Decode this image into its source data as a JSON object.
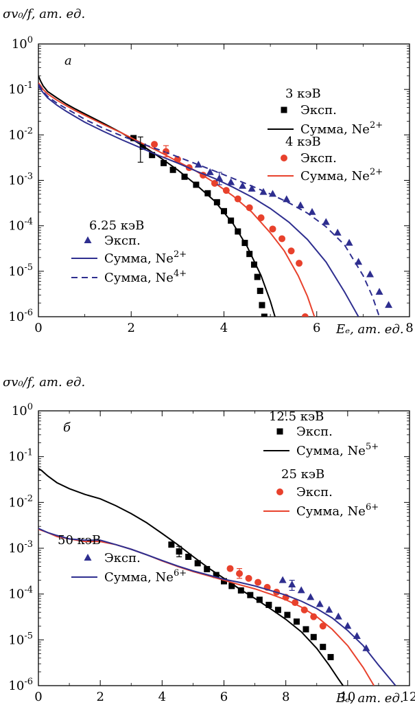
{
  "chart_data": [
    {
      "type": "line",
      "panel_label": "а",
      "ylabel": "σv₀/f, ат. ед.",
      "xlabel": "Eₑ, ат. ед.",
      "xlim": [
        0,
        8
      ],
      "ylim": [
        1e-06,
        1
      ],
      "yscale": "log",
      "xticks": [
        "0",
        "2",
        "4",
        "6",
        "8"
      ],
      "yticks": [
        "10^0",
        "10^-1",
        "10^-2",
        "10^-3",
        "10^-4",
        "10^-5",
        "10^-6"
      ],
      "legend": [
        {
          "title": "3 кэВ",
          "items": [
            {
              "marker": "square",
              "color": "#000000",
              "label": "Эксп."
            },
            {
              "line": "solid",
              "color": "#000000",
              "label": "Сумма, Ne",
              "sup": "2+"
            }
          ]
        },
        {
          "title": "4 кэВ",
          "items": [
            {
              "marker": "circle",
              "color": "#e8412c",
              "label": "Эксп."
            },
            {
              "line": "solid",
              "color": "#e8412c",
              "label": "Сумма, Ne",
              "sup": "2+"
            }
          ]
        },
        {
          "title": "6.25 кэВ",
          "items": [
            {
              "marker": "triangle",
              "color": "#2e2e8f",
              "label": "Эксп."
            },
            {
              "line": "solid",
              "color": "#2e2e8f",
              "label": "Сумма, Ne",
              "sup": "2+"
            },
            {
              "line": "dashed",
              "color": "#2e2e8f",
              "label": "Сумма, Ne",
              "sup": "4+"
            }
          ]
        }
      ],
      "series": [
        {
          "kind": "line",
          "style": "solid",
          "color": "#000000",
          "x": [
            0.0,
            0.05,
            0.1,
            0.2,
            0.4,
            0.6,
            0.8,
            1.0,
            1.4,
            1.8,
            2.2,
            2.6,
            3.0,
            3.4,
            3.8,
            4.2,
            4.5,
            4.8,
            5.0,
            5.1
          ],
          "y": [
            0.2,
            0.15,
            0.12,
            0.09,
            0.065,
            0.048,
            0.037,
            0.029,
            0.018,
            0.011,
            0.0062,
            0.0033,
            0.0017,
            0.0008,
            0.00035,
            0.00011,
            3.5e-05,
            8e-06,
            2.2e-06,
            1e-06
          ]
        },
        {
          "kind": "points",
          "marker": "square",
          "color": "#000000",
          "x": [
            2.05,
            2.25,
            2.45,
            2.7,
            2.9,
            3.15,
            3.4,
            3.65,
            3.85,
            4.0,
            4.15,
            4.3,
            4.45,
            4.55,
            4.65,
            4.72,
            4.78,
            4.82,
            4.87
          ],
          "y": [
            0.0085,
            0.0055,
            0.0036,
            0.0024,
            0.0017,
            0.0012,
            0.0008,
            0.00052,
            0.00033,
            0.00021,
            0.00013,
            7.5e-05,
            4.2e-05,
            2.4e-05,
            1.4e-05,
            7.5e-06,
            3.7e-06,
            1.8e-06,
            1e-06
          ]
        },
        {
          "kind": "line",
          "style": "solid",
          "color": "#e8412c",
          "x": [
            0.0,
            0.05,
            0.1,
            0.2,
            0.4,
            0.6,
            0.8,
            1.0,
            1.4,
            1.8,
            2.2,
            2.6,
            3.0,
            3.4,
            3.8,
            4.2,
            4.6,
            5.0,
            5.3,
            5.6,
            5.8,
            5.95
          ],
          "y": [
            0.14,
            0.12,
            0.1,
            0.08,
            0.058,
            0.044,
            0.034,
            0.027,
            0.017,
            0.011,
            0.0068,
            0.0043,
            0.0026,
            0.0016,
            0.00088,
            0.00045,
            0.0002,
            7e-05,
            2.8e-05,
            8e-06,
            2.8e-06,
            1e-06
          ]
        },
        {
          "kind": "points",
          "marker": "circle",
          "color": "#e8412c",
          "x": [
            2.5,
            2.75,
            3.0,
            3.25,
            3.55,
            3.8,
            4.05,
            4.3,
            4.55,
            4.8,
            5.05,
            5.25,
            5.45,
            5.62,
            5.75
          ],
          "y": [
            0.0062,
            0.0043,
            0.0029,
            0.0019,
            0.0013,
            0.00086,
            0.0006,
            0.00039,
            0.00025,
            0.00015,
            8.5e-05,
            5.2e-05,
            2.8e-05,
            1.5e-05,
            1e-06
          ]
        },
        {
          "kind": "line",
          "style": "solid",
          "color": "#2e2e8f",
          "x": [
            0.0,
            0.05,
            0.1,
            0.2,
            0.4,
            0.6,
            0.8,
            1.0,
            1.4,
            1.8,
            2.2,
            2.6,
            3.0,
            3.4,
            3.8,
            4.2,
            4.6,
            5.0,
            5.4,
            5.8,
            6.2,
            6.6,
            6.9
          ],
          "y": [
            0.12,
            0.1,
            0.085,
            0.065,
            0.045,
            0.033,
            0.025,
            0.019,
            0.012,
            0.0078,
            0.0052,
            0.0035,
            0.0024,
            0.0016,
            0.0011,
            0.0007,
            0.00043,
            0.00024,
            0.00012,
            5e-05,
            1.6e-05,
            3.5e-06,
            1e-06
          ]
        },
        {
          "kind": "line",
          "style": "dashed",
          "color": "#2e2e8f",
          "x": [
            0.0,
            0.05,
            0.1,
            0.2,
            0.4,
            0.6,
            0.8,
            1.0,
            1.4,
            1.8,
            2.2,
            2.6,
            3.0,
            3.4,
            3.8,
            4.2,
            4.6,
            5.0,
            5.4,
            5.8,
            6.2,
            6.6,
            7.0,
            7.2,
            7.35
          ],
          "y": [
            0.13,
            0.11,
            0.09,
            0.07,
            0.05,
            0.038,
            0.029,
            0.022,
            0.014,
            0.0095,
            0.0066,
            0.0047,
            0.0033,
            0.0023,
            0.0016,
            0.0011,
            0.00075,
            0.0005,
            0.00032,
            0.00019,
            9.5e-05,
            3.8e-05,
            8e-06,
            2.8e-06,
            1e-06
          ]
        },
        {
          "kind": "points",
          "marker": "triangle",
          "color": "#2e2e8f",
          "x": [
            3.45,
            3.7,
            3.9,
            4.15,
            4.4,
            4.6,
            4.85,
            5.05,
            5.35,
            5.65,
            5.9,
            6.2,
            6.45,
            6.7,
            6.9,
            7.15,
            7.35,
            7.55
          ],
          "y": [
            0.0022,
            0.0015,
            0.0011,
            0.0009,
            0.00075,
            0.00065,
            0.00055,
            0.0005,
            0.00038,
            0.00028,
            0.0002,
            0.00012,
            7e-05,
            4.2e-05,
            1.6e-05,
            8.5e-06,
            3.5e-06,
            1.8e-06
          ]
        }
      ],
      "error_bars": [
        {
          "x": 2.2,
          "y": 0.0055,
          "low": 0.0025,
          "high": 0.009,
          "color": "#000000"
        },
        {
          "x": 2.75,
          "y": 0.0043,
          "low": 0.0033,
          "high": 0.0058,
          "color": "#e8412c"
        },
        {
          "x": 3.9,
          "y": 0.0011,
          "low": 0.0008,
          "high": 0.0015,
          "color": "#2e2e8f"
        }
      ]
    },
    {
      "type": "line",
      "panel_label": "б",
      "ylabel": "σv₀/f, ат. ед.",
      "xlabel": "Eₑ, ат. ед.",
      "xlim": [
        0,
        12
      ],
      "ylim": [
        1e-06,
        1
      ],
      "yscale": "log",
      "xticks": [
        "0",
        "2",
        "4",
        "6",
        "8",
        "10",
        "12"
      ],
      "yticks": [
        "10^0",
        "10^-1",
        "10^-2",
        "10^-3",
        "10^-4",
        "10^-5",
        "10^-6"
      ],
      "legend": [
        {
          "title": "12.5 кэВ",
          "items": [
            {
              "marker": "square",
              "color": "#000000",
              "label": "Эксп."
            },
            {
              "line": "solid",
              "color": "#000000",
              "label": "Сумма, Ne",
              "sup": "5+"
            }
          ]
        },
        {
          "title": "25 кэВ",
          "items": [
            {
              "marker": "circle",
              "color": "#e8412c",
              "label": "Эксп."
            },
            {
              "line": "solid",
              "color": "#e8412c",
              "label": "Сумма, Ne",
              "sup": "6+"
            }
          ]
        },
        {
          "title": "50 кэВ",
          "items": [
            {
              "marker": "triangle",
              "color": "#2e2e8f",
              "label": "Эксп."
            },
            {
              "line": "solid",
              "color": "#2e2e8f",
              "label": "Сумма, Ne",
              "sup": "6+"
            }
          ]
        }
      ],
      "series": [
        {
          "kind": "line",
          "style": "solid",
          "color": "#000000",
          "x": [
            0.0,
            0.1,
            0.3,
            0.6,
            1.0,
            1.5,
            2.0,
            2.5,
            3.0,
            3.5,
            4.0,
            4.5,
            5.0,
            5.5,
            6.0,
            6.5,
            7.0,
            7.5,
            8.0,
            8.5,
            9.0,
            9.4,
            9.7,
            9.85
          ],
          "y": [
            0.055,
            0.05,
            0.038,
            0.027,
            0.02,
            0.015,
            0.012,
            0.0085,
            0.0057,
            0.0036,
            0.0021,
            0.0012,
            0.00066,
            0.00037,
            0.00022,
            0.00013,
            8e-05,
            4.8e-05,
            2.8e-05,
            1.5e-05,
            6.5e-06,
            2.8e-06,
            1.4e-06,
            1e-06
          ]
        },
        {
          "kind": "points",
          "marker": "square",
          "color": "#000000",
          "x": [
            4.3,
            4.55,
            4.85,
            5.15,
            5.45,
            5.75,
            6.0,
            6.25,
            6.55,
            6.85,
            7.15,
            7.45,
            7.75,
            8.05,
            8.35,
            8.65,
            8.9,
            9.2,
            9.45
          ],
          "y": [
            0.0012,
            0.00085,
            0.00065,
            0.00047,
            0.00035,
            0.00026,
            0.00019,
            0.00015,
            0.00012,
            9.5e-05,
            7.5e-05,
            5.8e-05,
            4.5e-05,
            3.5e-05,
            2.5e-05,
            1.7e-05,
            1.15e-05,
            7e-06,
            4.2e-06
          ]
        },
        {
          "kind": "line",
          "style": "solid",
          "color": "#e8412c",
          "x": [
            0.0,
            0.3,
            0.6,
            1.0,
            1.5,
            2.0,
            2.5,
            3.0,
            3.5,
            4.0,
            4.5,
            5.0,
            5.5,
            6.0,
            6.5,
            7.0,
            7.5,
            8.0,
            8.5,
            9.0,
            9.5,
            10.0,
            10.5,
            10.85
          ],
          "y": [
            0.0026,
            0.0022,
            0.0018,
            0.0016,
            0.0014,
            0.0014,
            0.0012,
            0.00095,
            0.00072,
            0.00053,
            0.0004,
            0.00031,
            0.00025,
            0.0002,
            0.00016,
            0.00013,
            0.0001,
            7.5e-05,
            5.2e-05,
            3.2e-05,
            1.7e-05,
            7.5e-06,
            2.5e-06,
            1e-06
          ]
        },
        {
          "kind": "points",
          "marker": "circle",
          "color": "#e8412c",
          "x": [
            6.2,
            6.5,
            6.8,
            7.1,
            7.4,
            7.7,
            8.0,
            8.3,
            8.6,
            8.9,
            9.2
          ],
          "y": [
            0.00036,
            0.00028,
            0.00022,
            0.00018,
            0.00014,
            0.00011,
            8.5e-05,
            6.5e-05,
            4.5e-05,
            3.2e-05,
            2e-05
          ]
        },
        {
          "kind": "line",
          "style": "solid",
          "color": "#2e2e8f",
          "x": [
            0.0,
            0.3,
            0.6,
            1.0,
            1.5,
            2.0,
            2.5,
            3.0,
            3.5,
            4.0,
            4.5,
            5.0,
            5.5,
            6.0,
            6.5,
            7.0,
            7.5,
            8.0,
            8.5,
            9.0,
            9.5,
            10.0,
            10.5,
            11.0,
            11.3,
            11.55
          ],
          "y": [
            0.0027,
            0.0022,
            0.0019,
            0.0016,
            0.0015,
            0.0015,
            0.0012,
            0.00095,
            0.00072,
            0.00054,
            0.00041,
            0.00032,
            0.00026,
            0.00021,
            0.00018,
            0.00015,
            0.00012,
            9.5e-05,
            7e-05,
            4.8e-05,
            3e-05,
            1.6e-05,
            7.5e-06,
            2.8e-06,
            1.6e-06,
            1e-06
          ]
        },
        {
          "kind": "points",
          "marker": "triangle",
          "color": "#2e2e8f",
          "x": [
            7.9,
            8.2,
            8.5,
            8.8,
            9.1,
            9.4,
            9.7,
            10.0,
            10.3,
            10.6
          ],
          "y": [
            0.0002,
            0.00016,
            0.00012,
            8.5e-05,
            6e-05,
            4.5e-05,
            3.2e-05,
            2e-05,
            1.2e-05,
            6.5e-06
          ]
        }
      ],
      "error_bars": [
        {
          "x": 4.55,
          "y": 0.00085,
          "low": 0.00065,
          "high": 0.0011,
          "color": "#000000"
        },
        {
          "x": 6.5,
          "y": 0.00028,
          "low": 0.00022,
          "high": 0.00036,
          "color": "#e8412c"
        },
        {
          "x": 8.2,
          "y": 0.00016,
          "low": 0.00012,
          "high": 0.0002,
          "color": "#2e2e8f"
        }
      ]
    }
  ]
}
